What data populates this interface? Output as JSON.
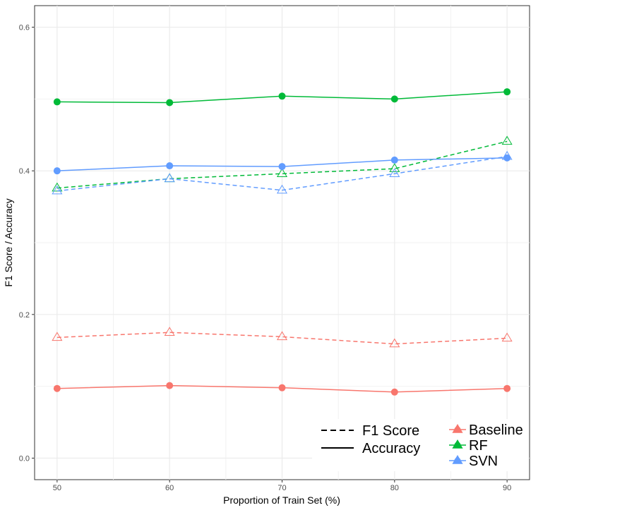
{
  "chart_data": {
    "type": "line",
    "title": "",
    "xlabel": "Proportion of Train Set (%)",
    "ylabel": "F1 Score / Accuracy",
    "x": [
      50,
      60,
      70,
      80,
      90
    ],
    "xlim": [
      48,
      92
    ],
    "ylim": [
      -0.03,
      0.63
    ],
    "xticks": [
      "50",
      "60",
      "70",
      "80",
      "90"
    ],
    "yticks": [
      "0.0",
      "0.2",
      "0.4",
      "0.6"
    ],
    "grid": true,
    "legend_position": "bottom-right",
    "linetype_legend": [
      {
        "label": "F1 Score",
        "style": "dashed"
      },
      {
        "label": "Accuracy",
        "style": "solid"
      }
    ],
    "model_legend": [
      {
        "label": "Baseline",
        "color": "#F8766D"
      },
      {
        "label": "RF",
        "color": "#00BA38"
      },
      {
        "label": "SVN",
        "color": "#619CFF"
      }
    ],
    "series": [
      {
        "model": "Baseline",
        "metric": "Accuracy",
        "color": "#F8766D",
        "style": "solid",
        "marker": "circle",
        "values": [
          0.097,
          0.101,
          0.098,
          0.092,
          0.097
        ]
      },
      {
        "model": "Baseline",
        "metric": "F1 Score",
        "color": "#F8766D",
        "style": "dashed",
        "marker": "triangle",
        "values": [
          0.168,
          0.175,
          0.169,
          0.159,
          0.167
        ]
      },
      {
        "model": "RF",
        "metric": "Accuracy",
        "color": "#00BA38",
        "style": "solid",
        "marker": "circle",
        "values": [
          0.496,
          0.495,
          0.504,
          0.5,
          0.51
        ]
      },
      {
        "model": "RF",
        "metric": "F1 Score",
        "color": "#00BA38",
        "style": "dashed",
        "marker": "triangle",
        "values": [
          0.376,
          0.389,
          0.396,
          0.403,
          0.441
        ]
      },
      {
        "model": "SVN",
        "metric": "Accuracy",
        "color": "#619CFF",
        "style": "solid",
        "marker": "circle",
        "values": [
          0.4,
          0.407,
          0.406,
          0.415,
          0.418
        ]
      },
      {
        "model": "SVN",
        "metric": "F1 Score",
        "color": "#619CFF",
        "style": "dashed",
        "marker": "triangle",
        "values": [
          0.372,
          0.389,
          0.373,
          0.396,
          0.42
        ]
      }
    ]
  }
}
